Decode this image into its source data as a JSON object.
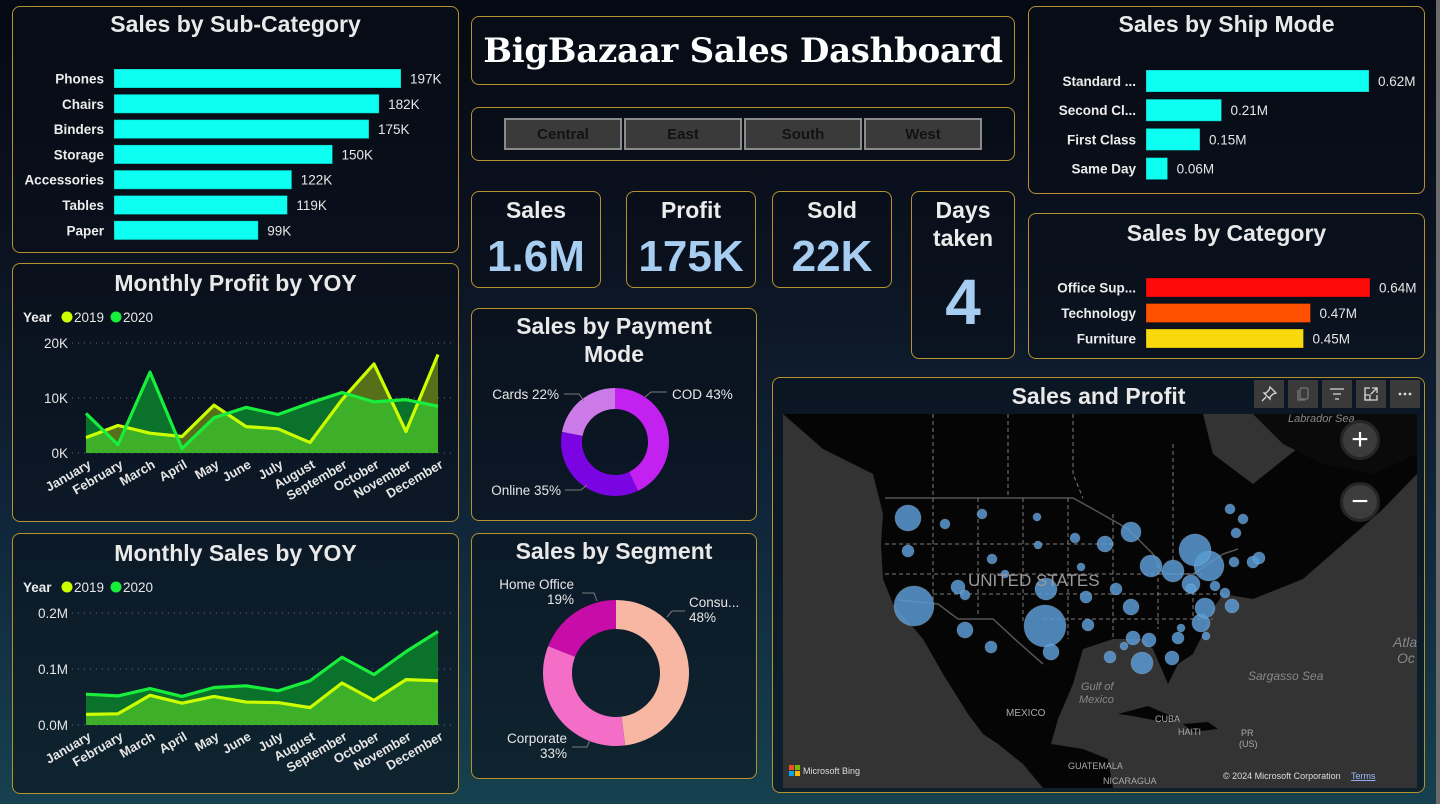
{
  "dashboard_title": "BigBazaar Sales Dashboard",
  "region_filter": [
    "Central",
    "East",
    "South",
    "West"
  ],
  "kpis": {
    "sales": {
      "label": "Sales",
      "value": "1.6M"
    },
    "profit": {
      "label": "Profit",
      "value": "175K"
    },
    "sold": {
      "label": "Sold",
      "value": "22K"
    },
    "days": {
      "label_line1": "Days",
      "label_line2": "taken",
      "value": "4"
    }
  },
  "colors": {
    "accent_border": "#b5922e",
    "bar_cyan": "#0dfff2",
    "kpi_value": "#a7cdf0",
    "year_2019": "#ccff00",
    "year_2020": "#18ee3c",
    "cat_office": "#ff0a0a",
    "cat_tech": "#ff5000",
    "cat_furn": "#f8d90c",
    "pay_cod": "#c321f0",
    "pay_online": "#7a04e2",
    "pay_cards": "#cc7ae8",
    "seg_consumer": "#f8b7a3",
    "seg_corporate": "#f46ec8",
    "seg_home": "#c80ca8",
    "map_bubble": "#5b9bd5"
  },
  "map": {
    "title": "Sales and Profit",
    "labels": {
      "country": "UNITED STATES",
      "labrador": "Labrador Sea",
      "gulf1": "Gulf of",
      "gulf2": "Mexico",
      "mexico": "MEXICO",
      "cuba": "CUBA",
      "haiti": "HAITI",
      "pr1": "PR",
      "pr2": "(US)",
      "guatemala": "GUATEMALA",
      "nicaragua": "NICARAGUA",
      "sargasso": "Sargasso Sea",
      "atl1": "Atla",
      "atl2": "Oc"
    },
    "zoom_in": "+",
    "zoom_out": "−",
    "bing_logo": "Microsoft Bing",
    "copyright": "© 2024 Microsoft Corporation",
    "terms": "Terms",
    "toolbar_icons": [
      "pin-icon",
      "copy-icon",
      "filter-icon",
      "focus-mode-icon",
      "more-options-icon"
    ]
  },
  "chart_data": [
    {
      "id": "subcat",
      "type": "bar",
      "orientation": "horizontal",
      "title": "Sales by Sub-Category",
      "categories": [
        "Phones",
        "Chairs",
        "Binders",
        "Storage",
        "Accessories",
        "Tables",
        "Paper"
      ],
      "values": [
        197,
        182,
        175,
        150,
        122,
        119,
        99
      ],
      "value_labels": [
        "197K",
        "182K",
        "175K",
        "150K",
        "122K",
        "119K",
        "99K"
      ],
      "unit": "K"
    },
    {
      "id": "profit_yoy",
      "type": "area",
      "title": "Monthly Profit by YOY",
      "legend_title": "Year",
      "legend_position": "top-left",
      "categories": [
        "January",
        "February",
        "March",
        "April",
        "May",
        "June",
        "July",
        "August",
        "September",
        "October",
        "November",
        "December"
      ],
      "series": [
        {
          "name": "2019",
          "values": [
            2.8,
            5.0,
            3.6,
            3.0,
            8.7,
            4.8,
            4.4,
            1.9,
            9.7,
            16.2,
            3.9,
            17.9
          ]
        },
        {
          "name": "2020",
          "values": [
            7.2,
            1.5,
            14.7,
            0.8,
            6.4,
            8.3,
            7.0,
            9.1,
            11.0,
            9.3,
            9.7,
            8.5
          ]
        }
      ],
      "unit": "K",
      "ylim": [
        0,
        20
      ],
      "yticks": [
        0,
        10,
        20
      ],
      "ytick_labels": [
        "0K",
        "10K",
        "20K"
      ],
      "grid": true
    },
    {
      "id": "sales_yoy",
      "type": "area",
      "title": "Monthly Sales by YOY",
      "legend_title": "Year",
      "legend_position": "top-left",
      "categories": [
        "January",
        "February",
        "March",
        "April",
        "May",
        "June",
        "July",
        "August",
        "September",
        "October",
        "November",
        "December"
      ],
      "series": [
        {
          "name": "2019",
          "values": [
            0.019,
            0.02,
            0.053,
            0.039,
            0.051,
            0.041,
            0.04,
            0.031,
            0.075,
            0.044,
            0.081,
            0.079
          ]
        },
        {
          "name": "2020",
          "values": [
            0.055,
            0.052,
            0.065,
            0.051,
            0.067,
            0.07,
            0.061,
            0.079,
            0.121,
            0.09,
            0.131,
            0.167
          ]
        }
      ],
      "unit": "M",
      "ylim": [
        0,
        0.2
      ],
      "yticks": [
        0,
        0.1,
        0.2
      ],
      "ytick_labels": [
        "0.0M",
        "0.1M",
        "0.2M"
      ],
      "grid": true
    },
    {
      "id": "payment",
      "type": "pie",
      "donut": true,
      "title_line1": "Sales by Payment",
      "title_line2": "Mode",
      "slices": [
        {
          "name": "COD",
          "value": 43,
          "label": "COD 43%"
        },
        {
          "name": "Online",
          "value": 35,
          "label": "Online 35%"
        },
        {
          "name": "Cards",
          "value": 22,
          "label": "Cards 22%"
        }
      ]
    },
    {
      "id": "segment",
      "type": "pie",
      "donut": true,
      "title": "Sales by Segment",
      "slices": [
        {
          "name": "Consumer",
          "value": 48,
          "label_line1": "Consu...",
          "label_line2": "48%"
        },
        {
          "name": "Corporate",
          "value": 33,
          "label_line1": "Corporate",
          "label_line2": "33%"
        },
        {
          "name": "Home Office",
          "value": 19,
          "label_line1": "Home Office",
          "label_line2": "19%"
        }
      ]
    },
    {
      "id": "shipmode",
      "type": "bar",
      "orientation": "horizontal",
      "title": "Sales by Ship Mode",
      "categories": [
        "Standard ...",
        "Second Cl...",
        "First Class",
        "Same Day"
      ],
      "values": [
        0.62,
        0.21,
        0.15,
        0.06
      ],
      "value_labels": [
        "0.62M",
        "0.21M",
        "0.15M",
        "0.06M"
      ],
      "unit": "M"
    },
    {
      "id": "category",
      "type": "bar",
      "orientation": "horizontal",
      "title": "Sales by Category",
      "categories": [
        "Office Sup...",
        "Technology",
        "Furniture"
      ],
      "values": [
        0.64,
        0.47,
        0.45
      ],
      "value_labels": [
        "0.64M",
        "0.47M",
        "0.45M"
      ],
      "unit": "M"
    }
  ]
}
